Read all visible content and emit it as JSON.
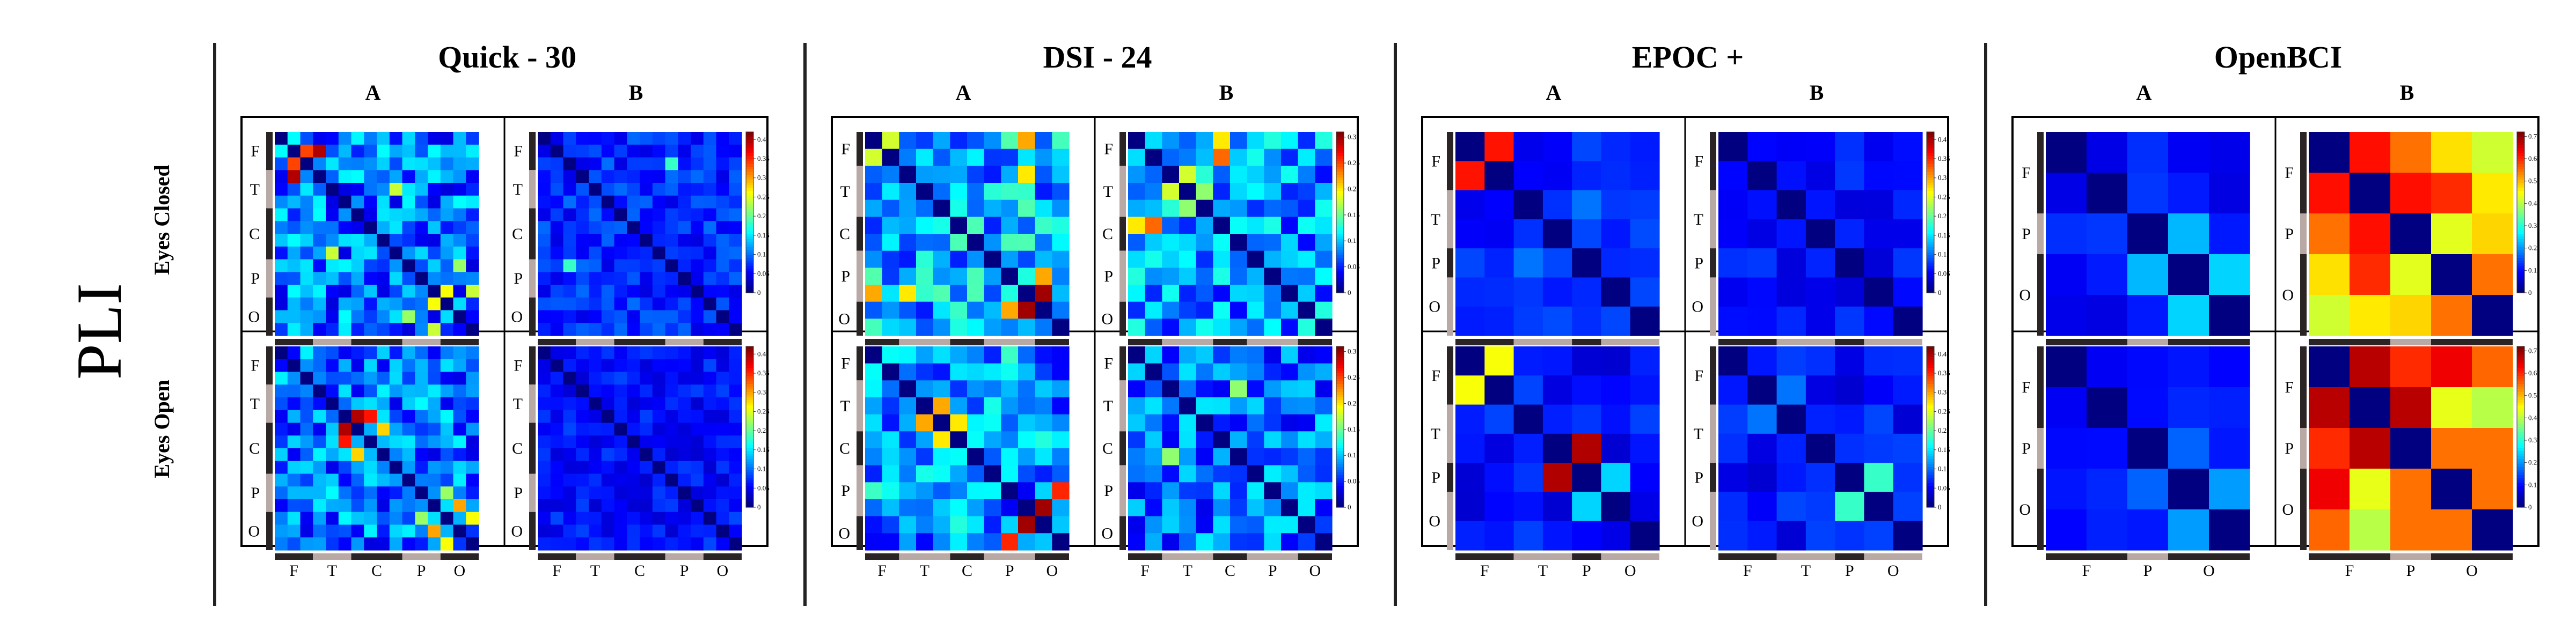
{
  "metric_label": "PLI",
  "row_labels": [
    "Eyes Closed",
    "Eyes Open"
  ],
  "colors": {
    "divider": "#222222",
    "frame": "#000000",
    "region_dark": "#2b2424",
    "region_light": "#b9a9a4"
  },
  "chart_data": [
    {
      "type": "heatmap",
      "title": "Quick - 30",
      "columns": [
        "A",
        "B"
      ],
      "size": 16,
      "regions_y": [
        "F",
        "T",
        "C",
        "P",
        "O"
      ],
      "regions_x": [
        "F",
        "T",
        "C",
        "P",
        "O"
      ],
      "colorbar": {
        "ticks": [
          "0.4",
          "0.35",
          "0.3",
          "0.25",
          "0.2",
          "0.15",
          "0.1",
          "0.05",
          "0"
        ],
        "vmin": 0,
        "vmax": 0.42
      },
      "panels": [
        {
          "condition": "Eyes Closed",
          "subject": "A",
          "mean": 0.08,
          "var": 0.12,
          "seed": 11,
          "hot": [
            [
              1,
              2,
              0.34
            ],
            [
              2,
              1,
              0.34
            ],
            [
              1,
              3,
              0.4
            ],
            [
              3,
              1,
              0.4
            ],
            [
              4,
              9,
              0.24
            ],
            [
              9,
              4,
              0.24
            ],
            [
              12,
              13,
              0.26
            ],
            [
              13,
              12,
              0.26
            ],
            [
              12,
              15,
              0.24
            ],
            [
              15,
              12,
              0.24
            ],
            [
              10,
              14,
              0.22
            ],
            [
              14,
              10,
              0.22
            ]
          ]
        },
        {
          "condition": "Eyes Closed",
          "subject": "B",
          "mean": 0.06,
          "var": 0.06,
          "seed": 12,
          "hot": [
            [
              2,
              10,
              0.18
            ],
            [
              10,
              2,
              0.18
            ]
          ]
        },
        {
          "condition": "Eyes Open",
          "subject": "A",
          "mean": 0.08,
          "var": 0.12,
          "seed": 13,
          "hot": [
            [
              5,
              6,
              0.4
            ],
            [
              6,
              5,
              0.4
            ],
            [
              5,
              7,
              0.36
            ],
            [
              7,
              5,
              0.36
            ],
            [
              6,
              8,
              0.28
            ],
            [
              8,
              6,
              0.28
            ],
            [
              12,
              14,
              0.3
            ],
            [
              14,
              12,
              0.3
            ],
            [
              13,
              15,
              0.26
            ],
            [
              15,
              13,
              0.26
            ],
            [
              11,
              13,
              0.22
            ],
            [
              13,
              11,
              0.22
            ]
          ]
        },
        {
          "condition": "Eyes Open",
          "subject": "B",
          "mean": 0.05,
          "var": 0.05,
          "seed": 14,
          "hot": []
        }
      ]
    },
    {
      "type": "heatmap",
      "title": "DSI - 24",
      "columns": [
        "A",
        "B"
      ],
      "size": 12,
      "regions_y": [
        "F",
        "T",
        "C",
        "P",
        "O"
      ],
      "regions_x": [
        "F",
        "T",
        "C",
        "P",
        "O"
      ],
      "colorbar": {
        "ticks": [
          "0.3",
          "0.25",
          "0.2",
          "0.15",
          "0.1",
          "0.05",
          "0"
        ],
        "vmin": 0,
        "vmax": 0.31
      },
      "panels": [
        {
          "condition": "Eyes Closed",
          "subject": "A",
          "mean": 0.08,
          "var": 0.1,
          "seed": 21,
          "hot": [
            [
              0,
              1,
              0.18
            ],
            [
              1,
              0,
              0.18
            ],
            [
              0,
              9,
              0.22
            ],
            [
              9,
              0,
              0.22
            ],
            [
              9,
              10,
              0.3
            ],
            [
              10,
              9,
              0.3
            ],
            [
              8,
              10,
              0.22
            ],
            [
              10,
              8,
              0.22
            ],
            [
              2,
              9,
              0.2
            ],
            [
              9,
              2,
              0.2
            ]
          ]
        },
        {
          "condition": "Eyes Closed",
          "subject": "B",
          "mean": 0.07,
          "var": 0.09,
          "seed": 22,
          "hot": [
            [
              1,
              5,
              0.24
            ],
            [
              5,
              1,
              0.24
            ],
            [
              0,
              5,
              0.2
            ],
            [
              5,
              0,
              0.2
            ],
            [
              3,
              2,
              0.18
            ],
            [
              2,
              3,
              0.18
            ],
            [
              3,
              4,
              0.16
            ],
            [
              4,
              3,
              0.16
            ]
          ]
        },
        {
          "condition": "Eyes Open",
          "subject": "A",
          "mean": 0.07,
          "var": 0.1,
          "seed": 23,
          "hot": [
            [
              3,
              4,
              0.22
            ],
            [
              4,
              3,
              0.22
            ],
            [
              4,
              5,
              0.2
            ],
            [
              5,
              4,
              0.2
            ],
            [
              9,
              10,
              0.3
            ],
            [
              10,
              9,
              0.3
            ],
            [
              8,
              11,
              0.26
            ],
            [
              11,
              8,
              0.26
            ]
          ]
        },
        {
          "condition": "Eyes Open",
          "subject": "B",
          "mean": 0.06,
          "var": 0.08,
          "seed": 24,
          "hot": [
            [
              2,
              6,
              0.16
            ],
            [
              6,
              2,
              0.16
            ]
          ]
        }
      ]
    },
    {
      "type": "heatmap",
      "title": "EPOC +",
      "columns": [
        "A",
        "B"
      ],
      "size": 7,
      "regions_y": [
        "F",
        "T",
        "P",
        "O"
      ],
      "regions_x": [
        "F",
        "T",
        "P",
        "O"
      ],
      "colorbar": {
        "ticks": [
          "0.4",
          "0.35",
          "0.3",
          "0.25",
          "0.2",
          "0.15",
          "0.1",
          "0.05",
          "0"
        ],
        "vmin": 0,
        "vmax": 0.42
      },
      "panels": [
        {
          "condition": "Eyes Closed",
          "subject": "A",
          "mean": 0.06,
          "var": 0.05,
          "seed": 31,
          "hot": [
            [
              0,
              1,
              0.36
            ],
            [
              1,
              0,
              0.36
            ],
            [
              2,
              4,
              0.1
            ],
            [
              4,
              2,
              0.1
            ]
          ]
        },
        {
          "condition": "Eyes Closed",
          "subject": "B",
          "mean": 0.05,
          "var": 0.04,
          "seed": 32,
          "hot": []
        },
        {
          "condition": "Eyes Open",
          "subject": "A",
          "mean": 0.05,
          "var": 0.05,
          "seed": 33,
          "hot": [
            [
              0,
              1,
              0.26
            ],
            [
              1,
              0,
              0.26
            ],
            [
              3,
              4,
              0.4
            ],
            [
              4,
              3,
              0.4
            ],
            [
              4,
              5,
              0.14
            ],
            [
              5,
              4,
              0.14
            ]
          ]
        },
        {
          "condition": "Eyes Open",
          "subject": "B",
          "mean": 0.05,
          "var": 0.05,
          "seed": 34,
          "hot": [
            [
              4,
              5,
              0.18
            ],
            [
              5,
              4,
              0.18
            ],
            [
              1,
              2,
              0.1
            ],
            [
              2,
              1,
              0.1
            ]
          ]
        }
      ]
    },
    {
      "type": "heatmap",
      "title": "OpenBCI",
      "columns": [
        "A",
        "B"
      ],
      "size": 5,
      "regions_y": [
        "F",
        "P",
        "O"
      ],
      "regions_x": [
        "F",
        "P",
        "O"
      ],
      "colorbar": {
        "ticks": [
          "0.7",
          "0.6",
          "0.5",
          "0.4",
          "0.3",
          "0.2",
          "0.1",
          "0"
        ],
        "vmin": 0,
        "vmax": 0.72
      },
      "panels": [
        {
          "condition": "Eyes Closed",
          "subject": "A",
          "mean": 0.09,
          "var": 0.06,
          "seed": 41,
          "hot": [
            [
              2,
              3,
              0.22
            ],
            [
              3,
              2,
              0.22
            ],
            [
              3,
              4,
              0.24
            ],
            [
              4,
              3,
              0.24
            ]
          ]
        },
        {
          "condition": "Eyes Closed",
          "subject": "B",
          "mean": 0.45,
          "var": 0.3,
          "seed": 42,
          "hot": [
            [
              0,
              1,
              0.62
            ],
            [
              1,
              0,
              0.62
            ],
            [
              0,
              2,
              0.55
            ],
            [
              2,
              0,
              0.55
            ],
            [
              1,
              2,
              0.62
            ],
            [
              2,
              1,
              0.62
            ],
            [
              1,
              3,
              0.6
            ],
            [
              3,
              1,
              0.6
            ],
            [
              2,
              4,
              0.48
            ],
            [
              4,
              2,
              0.48
            ],
            [
              3,
              4,
              0.55
            ],
            [
              4,
              3,
              0.55
            ]
          ]
        },
        {
          "condition": "Eyes Open",
          "subject": "A",
          "mean": 0.09,
          "var": 0.05,
          "seed": 43,
          "hot": [
            [
              3,
              4,
              0.2
            ],
            [
              4,
              3,
              0.2
            ],
            [
              2,
              3,
              0.16
            ],
            [
              3,
              2,
              0.16
            ]
          ]
        },
        {
          "condition": "Eyes Open",
          "subject": "B",
          "mean": 0.52,
          "var": 0.25,
          "seed": 44,
          "hot": [
            [
              0,
              1,
              0.68
            ],
            [
              1,
              0,
              0.68
            ],
            [
              1,
              2,
              0.68
            ],
            [
              2,
              1,
              0.68
            ],
            [
              0,
              2,
              0.6
            ],
            [
              2,
              0,
              0.6
            ],
            [
              2,
              3,
              0.55
            ],
            [
              3,
              2,
              0.55
            ],
            [
              3,
              4,
              0.55
            ],
            [
              4,
              3,
              0.55
            ],
            [
              1,
              4,
              0.4
            ],
            [
              4,
              1,
              0.4
            ],
            [
              2,
              4,
              0.55
            ],
            [
              4,
              2,
              0.55
            ]
          ]
        }
      ]
    }
  ]
}
